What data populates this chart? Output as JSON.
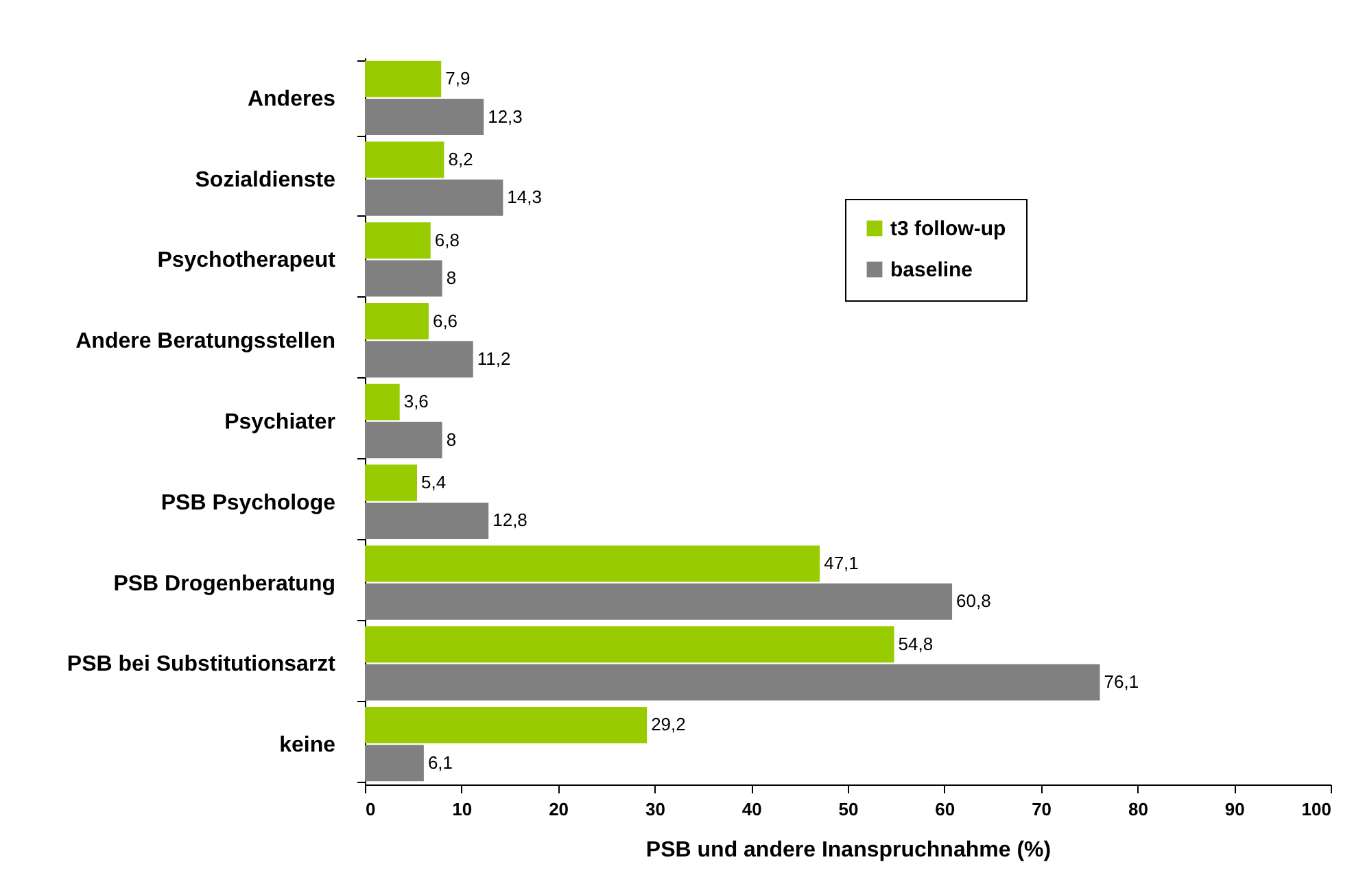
{
  "chart_data": {
    "type": "bar",
    "orientation": "horizontal",
    "xlabel": "PSB und andere Inanspruchnahme (%)",
    "categories": [
      "Anderes",
      "Sozialdienste",
      "Psychotherapeut",
      "Andere Beratungsstellen",
      "Psychiater",
      "PSB Psychologe",
      "PSB Drogenberatung",
      "PSB bei Substitutionsarzt",
      "keine"
    ],
    "series": [
      {
        "name": "t3 follow-up",
        "color": "#99cc00",
        "values": [
          7.9,
          8.2,
          6.8,
          6.6,
          3.6,
          5.4,
          47.1,
          54.8,
          29.2
        ],
        "value_labels": [
          "7,9",
          "8,2",
          "6,8",
          "6,6",
          "3,6",
          "5,4",
          "47,1",
          "54,8",
          "29,2"
        ]
      },
      {
        "name": "baseline",
        "color": "#808080",
        "values": [
          12.3,
          14.3,
          8,
          11.2,
          8,
          12.8,
          60.8,
          76.1,
          6.1
        ],
        "value_labels": [
          "12,3",
          "14,3",
          "8",
          "11,2",
          "8",
          "12,8",
          "60,8",
          "76,1",
          "6,1"
        ]
      }
    ],
    "xlim": [
      0,
      100
    ],
    "xticks": [
      0,
      10,
      20,
      30,
      40,
      50,
      60,
      70,
      80,
      90,
      100
    ],
    "grid": false,
    "legend": "top right"
  }
}
